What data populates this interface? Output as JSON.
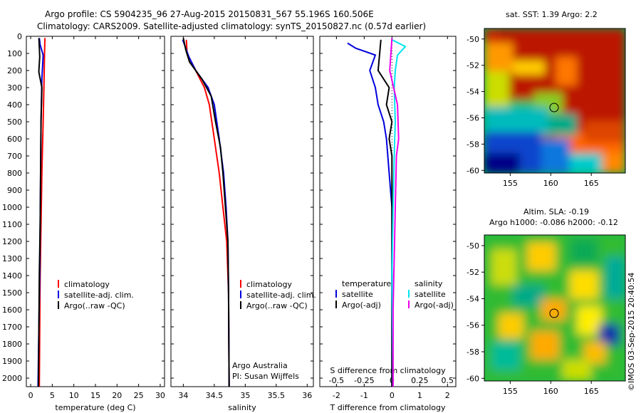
{
  "header": {
    "line1": "Argo profile: CS 5904235_96 27-Aug-2015 20150831_567 55.196S 160.506E",
    "line2": "Climatology: CARS2009. Satellite-adjusted climatology: synTS_20150827.nc (0.57d earlier)"
  },
  "credit": "©IMOS 03-Sep-2015 20:40:54",
  "colors": {
    "climatology": "#ff0000",
    "satellite": "#0000dd",
    "argo": "#000000",
    "sal_satellite": "#00e5ee",
    "sal_argo": "#ee00ee"
  },
  "chart_data": [
    {
      "type": "line",
      "xlabel": "temperature (deg C)",
      "ylabel": "",
      "xlim": [
        -1,
        31
      ],
      "ylim": [
        2050,
        0
      ],
      "xticks": [
        "0",
        "5",
        "10",
        "15",
        "20",
        "25",
        "30"
      ],
      "yticks": [
        "0",
        "100",
        "200",
        "300",
        "400",
        "500",
        "600",
        "700",
        "800",
        "900",
        "1000",
        "1100",
        "1200",
        "1300",
        "1400",
        "1500",
        "1600",
        "1700",
        "1800",
        "1900",
        "2000"
      ],
      "legend": [
        "climatology",
        "satellite-adj. clim.",
        "Argo(..raw -QC)"
      ],
      "series": [
        {
          "name": "climatology",
          "color": "#ff0000",
          "points": [
            [
              3.3,
              10
            ],
            [
              3.2,
              100
            ],
            [
              3.1,
              250
            ],
            [
              2.9,
              500
            ],
            [
              2.6,
              800
            ],
            [
              2.4,
              1100
            ],
            [
              2.2,
              1400
            ],
            [
              2.1,
              1700
            ],
            [
              2.0,
              2050
            ]
          ]
        },
        {
          "name": "satellite-adj. clim.",
          "color": "#0000dd",
          "points": [
            [
              2.0,
              10
            ],
            [
              2.2,
              50
            ],
            [
              2.9,
              110
            ],
            [
              2.8,
              160
            ],
            [
              2.6,
              250
            ],
            [
              2.4,
              500
            ],
            [
              2.3,
              800
            ],
            [
              2.2,
              1100
            ],
            [
              2.1,
              1400
            ],
            [
              1.9,
              1700
            ],
            [
              1.7,
              2050
            ]
          ]
        },
        {
          "name": "Argo(..raw -QC)",
          "color": "#000000",
          "points": [
            [
              1.9,
              10
            ],
            [
              2.1,
              120
            ],
            [
              1.9,
              200
            ],
            [
              1.9,
              210
            ],
            [
              2.6,
              300
            ],
            [
              2.4,
              500
            ],
            [
              2.3,
              800
            ],
            [
              2.2,
              1100
            ],
            [
              2.0,
              1400
            ],
            [
              1.9,
              1700
            ],
            [
              1.8,
              2050
            ]
          ]
        }
      ]
    },
    {
      "type": "line",
      "xlabel": "salinity",
      "ylabel": "",
      "xlim": [
        33.8,
        36.1
      ],
      "ylim": [
        2050,
        0
      ],
      "xticks": [
        "34",
        "34.5",
        "35",
        "35.5",
        "36"
      ],
      "legend": [
        "climatology",
        "satellite-adj. clim.",
        "Argo(..raw -QC)"
      ],
      "annotations": [
        "Argo Australia",
        "PI: Susan Wijffels"
      ],
      "series": [
        {
          "name": "climatology",
          "color": "#ff0000",
          "points": [
            [
              34.05,
              20
            ],
            [
              34.06,
              100
            ],
            [
              34.2,
              200
            ],
            [
              34.34,
              300
            ],
            [
              34.42,
              400
            ],
            [
              34.5,
              600
            ],
            [
              34.58,
              800
            ],
            [
              34.64,
              1000
            ],
            [
              34.7,
              1200
            ],
            [
              34.73,
              1500
            ],
            [
              34.74,
              2050
            ]
          ]
        },
        {
          "name": "satellite-adj. clim.",
          "color": "#0000dd",
          "points": [
            [
              33.99,
              20
            ],
            [
              34.05,
              80
            ],
            [
              34.09,
              120
            ],
            [
              34.2,
              200
            ],
            [
              34.4,
              300
            ],
            [
              34.5,
              400
            ],
            [
              34.58,
              600
            ],
            [
              34.65,
              800
            ],
            [
              34.69,
              1000
            ],
            [
              34.72,
              1200
            ],
            [
              34.73,
              1500
            ],
            [
              34.74,
              2050
            ]
          ]
        },
        {
          "name": "Argo(..raw -QC)",
          "color": "#000000",
          "points": [
            [
              34.0,
              10
            ],
            [
              34.04,
              80
            ],
            [
              34.1,
              150
            ],
            [
              34.3,
              250
            ],
            [
              34.45,
              350
            ],
            [
              34.52,
              500
            ],
            [
              34.6,
              650
            ],
            [
              34.64,
              800
            ],
            [
              34.68,
              1000
            ],
            [
              34.72,
              1200
            ],
            [
              34.73,
              1500
            ],
            [
              34.74,
              2050
            ]
          ]
        }
      ]
    },
    {
      "type": "line",
      "xlabel": "T difference from climatology",
      "xlabel2": "S difference from climatology",
      "xlim": [
        -2.6,
        2.3
      ],
      "x2lim": [
        -0.65,
        0.575
      ],
      "ylim": [
        2050,
        0
      ],
      "xticks": [
        "-2",
        "-1",
        "0",
        "1",
        "2"
      ],
      "x2ticks": [
        "-0.5",
        "-0.25",
        "0",
        "0.25",
        "0.5"
      ],
      "legend_left_title": "temperature",
      "legend_right_title": "salinity",
      "legend": [
        "satellite",
        "Argo(-adj)",
        "satellite",
        "Argo(-adj)"
      ],
      "series": [
        {
          "name": "temperature satellite",
          "color": "#0000dd",
          "points": [
            [
              -1.6,
              40
            ],
            [
              -1.3,
              70
            ],
            [
              -0.6,
              110
            ],
            [
              -0.8,
              200
            ],
            [
              -0.6,
              300
            ],
            [
              -0.5,
              400
            ],
            [
              -0.3,
              500
            ],
            [
              -0.2,
              600
            ],
            [
              -0.1,
              800
            ],
            [
              0,
              1000
            ],
            [
              0,
              2050
            ]
          ]
        },
        {
          "name": "temperature Argo(-adj)",
          "color": "#000000",
          "points": [
            [
              -0.4,
              20
            ],
            [
              -0.5,
              200
            ],
            [
              -0.1,
              300
            ],
            [
              -0.2,
              400
            ],
            [
              0,
              500
            ],
            [
              -0.1,
              600
            ],
            [
              0,
              700
            ],
            [
              0,
              1100
            ],
            [
              0,
              2050
            ]
          ]
        },
        {
          "name": "salinity satellite",
          "color": "#00e5ee",
          "points": [
            [
              0,
              20
            ],
            [
              0.12,
              60
            ],
            [
              0.05,
              110
            ],
            [
              0.03,
              200
            ],
            [
              0.02,
              300
            ],
            [
              0.03,
              500
            ],
            [
              0.02,
              700
            ],
            [
              0.01,
              1000
            ],
            [
              0,
              1400
            ],
            [
              0.01,
              2050
            ]
          ]
        },
        {
          "name": "salinity Argo(-adj)",
          "color": "#ee00ee",
          "points": [
            [
              0,
              10
            ],
            [
              -0.02,
              200
            ],
            [
              0.05,
              400
            ],
            [
              0.06,
              600
            ],
            [
              0.04,
              700
            ],
            [
              0.03,
              1000
            ],
            [
              0.02,
              1300
            ],
            [
              0.01,
              1600
            ],
            [
              0.01,
              2050
            ]
          ]
        }
      ]
    },
    {
      "type": "heatmap",
      "title": "sat. SST: 1.39 Argo: 2.2",
      "xlim": [
        151.8,
        169.2
      ],
      "ylim": [
        -60.2,
        -49.2
      ],
      "xticks": [
        "155",
        "160",
        "165"
      ],
      "yticks": [
        "-50",
        "-52",
        "-54",
        "-56",
        "-58",
        "-60"
      ],
      "marker": {
        "lon": 160.506,
        "lat": -55.196
      }
    },
    {
      "type": "heatmap",
      "title": "Altim. SLA: -0.19",
      "subtitle": "Argo h1000: -0.086 h2000: -0.12",
      "xlim": [
        151.8,
        169.2
      ],
      "ylim": [
        -60.2,
        -49.2
      ],
      "xticks": [
        "155",
        "160",
        "165"
      ],
      "yticks": [
        "-50",
        "-52",
        "-54",
        "-56",
        "-58",
        "-60"
      ],
      "marker": {
        "lon": 160.506,
        "lat": -55.196
      }
    }
  ]
}
